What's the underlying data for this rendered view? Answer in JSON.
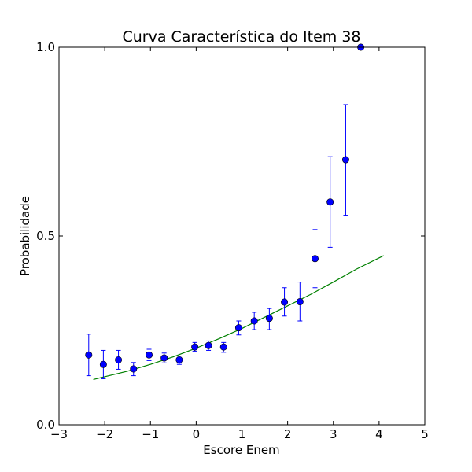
{
  "chart_data": {
    "type": "scatter",
    "title": "Curva Característica do Item 38",
    "xlabel": "Escore Enem",
    "ylabel": "Probabilidade",
    "xlim": [
      -3,
      5
    ],
    "ylim": [
      0,
      1
    ],
    "xticks": [
      -3,
      -2,
      -1,
      0,
      1,
      2,
      3,
      4,
      5
    ],
    "xtick_labels": [
      "−3",
      "−2",
      "−1",
      "0",
      "1",
      "2",
      "3",
      "4",
      "5"
    ],
    "yticks": [
      0,
      0.5,
      1
    ],
    "ytick_labels": [
      "0.0",
      "0.5",
      "1.0"
    ],
    "grid": false,
    "series": [
      {
        "kind": "errorbar-points",
        "color": "#0000ff",
        "points": [
          {
            "x": -2.35,
            "y": 0.185,
            "ylo": 0.13,
            "yhi": 0.24
          },
          {
            "x": -2.03,
            "y": 0.16,
            "ylo": 0.122,
            "yhi": 0.197
          },
          {
            "x": -1.7,
            "y": 0.172,
            "ylo": 0.147,
            "yhi": 0.197
          },
          {
            "x": -1.37,
            "y": 0.148,
            "ylo": 0.13,
            "yhi": 0.165
          },
          {
            "x": -1.03,
            "y": 0.185,
            "ylo": 0.17,
            "yhi": 0.2
          },
          {
            "x": -0.7,
            "y": 0.177,
            "ylo": 0.164,
            "yhi": 0.19
          },
          {
            "x": -0.37,
            "y": 0.172,
            "ylo": 0.16,
            "yhi": 0.182
          },
          {
            "x": -0.03,
            "y": 0.206,
            "ylo": 0.195,
            "yhi": 0.218
          },
          {
            "x": 0.27,
            "y": 0.21,
            "ylo": 0.197,
            "yhi": 0.222
          },
          {
            "x": 0.6,
            "y": 0.206,
            "ylo": 0.192,
            "yhi": 0.218
          },
          {
            "x": 0.93,
            "y": 0.257,
            "ylo": 0.238,
            "yhi": 0.275
          },
          {
            "x": 1.27,
            "y": 0.275,
            "ylo": 0.252,
            "yhi": 0.298
          },
          {
            "x": 1.6,
            "y": 0.282,
            "ylo": 0.252,
            "yhi": 0.308
          },
          {
            "x": 1.93,
            "y": 0.325,
            "ylo": 0.288,
            "yhi": 0.363
          },
          {
            "x": 2.27,
            "y": 0.326,
            "ylo": 0.275,
            "yhi": 0.378
          },
          {
            "x": 2.6,
            "y": 0.44,
            "ylo": 0.363,
            "yhi": 0.517
          },
          {
            "x": 2.93,
            "y": 0.59,
            "ylo": 0.47,
            "yhi": 0.71
          },
          {
            "x": 3.27,
            "y": 0.702,
            "ylo": 0.555,
            "yhi": 0.848
          },
          {
            "x": 3.6,
            "y": 1.0,
            "ylo": 1.0,
            "yhi": 1.0
          }
        ]
      },
      {
        "kind": "line",
        "color": "#008000",
        "x": [
          -2.25,
          -1.5,
          -1.0,
          -0.5,
          0.0,
          0.5,
          1.0,
          1.5,
          2.0,
          2.5,
          3.0,
          3.5,
          4.1
        ],
        "y": [
          0.12,
          0.142,
          0.16,
          0.18,
          0.203,
          0.228,
          0.255,
          0.285,
          0.315,
          0.345,
          0.378,
          0.412,
          0.448
        ]
      }
    ]
  }
}
